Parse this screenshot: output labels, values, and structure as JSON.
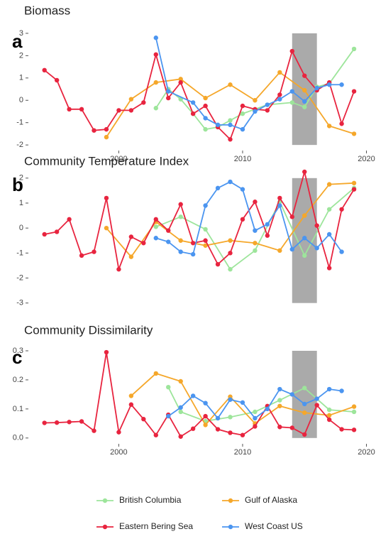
{
  "chart_data": [
    {
      "type": "line",
      "title": "Biomass",
      "label": "a",
      "xlim": [
        1992.7,
        2020.2
      ],
      "xticks": [
        2000,
        2010,
        2020
      ],
      "ylim": [
        -2.25,
        3.22
      ],
      "yticks": [
        -2,
        -1,
        0,
        1,
        2,
        3
      ],
      "shade": [
        2014,
        2016
      ],
      "series": [
        {
          "name": "British Columbia",
          "color": "#9de59b",
          "x": [
            2003,
            2004,
            2005,
            2006,
            2007,
            2008,
            2009,
            2010,
            2012,
            2014,
            2015,
            2016,
            2017,
            2019
          ],
          "values": [
            -0.35,
            0.5,
            0.05,
            -0.6,
            -1.3,
            -1.2,
            -0.9,
            -0.6,
            -0.2,
            -0.1,
            -0.3,
            0.6,
            0.75,
            2.3
          ]
        },
        {
          "name": "Gulf of Alaska",
          "color": "#f5a72a",
          "x": [
            1999,
            2001,
            2003,
            2005,
            2007,
            2009,
            2011,
            2013,
            2015,
            2017,
            2019
          ],
          "values": [
            -1.65,
            0.05,
            0.8,
            0.95,
            0.1,
            0.7,
            0.0,
            1.25,
            0.45,
            -1.15,
            -1.5
          ]
        },
        {
          "name": "Eastern Bering Sea",
          "color": "#e8243f",
          "x": [
            1994,
            1995,
            1996,
            1997,
            1998,
            1999,
            2000,
            2001,
            2002,
            2003,
            2004,
            2005,
            2006,
            2007,
            2008,
            2009,
            2010,
            2011,
            2012,
            2013,
            2014,
            2015,
            2016,
            2017,
            2018,
            2019
          ],
          "values": [
            1.35,
            0.9,
            -0.4,
            -0.4,
            -1.35,
            -1.3,
            -0.45,
            -0.45,
            -0.1,
            2.05,
            0.1,
            0.8,
            -0.6,
            -0.25,
            -1.2,
            -1.75,
            -0.25,
            -0.4,
            -0.45,
            0.25,
            2.2,
            1.1,
            0.45,
            0.8,
            -1.05,
            0.4
          ]
        },
        {
          "name": "West Coast US",
          "color": "#4b95f0",
          "x": [
            2003,
            2004,
            2006,
            2007,
            2008,
            2009,
            2010,
            2011,
            2012,
            2013,
            2014,
            2015,
            2016,
            2017,
            2018
          ],
          "values": [
            2.8,
            0.4,
            -0.1,
            -0.8,
            -1.1,
            -1.1,
            -1.3,
            -0.5,
            -0.2,
            0.05,
            0.4,
            -0.05,
            0.55,
            0.7,
            0.7
          ]
        }
      ]
    },
    {
      "type": "line",
      "title": "Community Temperature Index",
      "label": "b",
      "xlim": [
        1992.7,
        2020.2
      ],
      "ylim": [
        -3.15,
        2.25
      ],
      "yticks": [
        -3,
        -2,
        -1,
        0,
        1,
        2
      ],
      "shade": [
        2014,
        2016
      ],
      "series": [
        {
          "color": "#9de59b",
          "x": [
            2003,
            2005,
            2007,
            2009,
            2011,
            2013,
            2015,
            2017,
            2019
          ],
          "values": [
            0.05,
            0.45,
            -0.05,
            -1.65,
            -0.9,
            1.05,
            -1.1,
            0.75,
            1.6
          ]
        },
        {
          "color": "#f5a72a",
          "x": [
            1999,
            2001,
            2003,
            2005,
            2007,
            2009,
            2011,
            2013,
            2015,
            2017,
            2019
          ],
          "values": [
            0.0,
            -1.15,
            0.25,
            -0.5,
            -0.7,
            -0.5,
            -0.6,
            -0.9,
            0.5,
            1.75,
            1.8
          ]
        },
        {
          "color": "#e8243f",
          "x": [
            1994,
            1995,
            1996,
            1997,
            1998,
            1999,
            2000,
            2001,
            2002,
            2003,
            2004,
            2005,
            2006,
            2007,
            2008,
            2009,
            2010,
            2011,
            2012,
            2013,
            2014,
            2015,
            2016,
            2017,
            2018,
            2019
          ],
          "values": [
            -0.25,
            -0.15,
            0.35,
            -1.1,
            -0.95,
            1.2,
            -1.65,
            -0.35,
            -0.6,
            0.35,
            -0.1,
            0.95,
            -0.6,
            -0.5,
            -1.45,
            -1.0,
            0.35,
            1.05,
            -0.3,
            1.2,
            0.45,
            2.25,
            0.1,
            -1.6,
            0.75,
            1.55
          ]
        },
        {
          "color": "#4b95f0",
          "x": [
            2003,
            2004,
            2005,
            2006,
            2007,
            2008,
            2009,
            2010,
            2011,
            2012,
            2013,
            2014,
            2015,
            2016,
            2017,
            2018
          ],
          "values": [
            -0.4,
            -0.55,
            -0.95,
            -1.05,
            0.9,
            1.6,
            1.85,
            1.55,
            -0.1,
            0.15,
            0.9,
            -0.85,
            -0.4,
            -0.8,
            -0.25,
            -0.95
          ]
        }
      ]
    },
    {
      "type": "line",
      "title": "Community Dissimilarity",
      "label": "c",
      "xlim": [
        1992.7,
        2020.2
      ],
      "xticks": [
        2000,
        2010,
        2020
      ],
      "ylim": [
        -0.02,
        0.322
      ],
      "yticks": [
        {
          "value": 0,
          "label": "0.0"
        },
        0.1,
        0.2,
        0.3
      ],
      "shade": [
        2014,
        2016
      ],
      "series": [
        {
          "color": "#9de59b",
          "x": [
            2004,
            2005,
            2007,
            2009,
            2011,
            2013,
            2015,
            2017,
            2019
          ],
          "values": [
            0.175,
            0.09,
            0.058,
            0.072,
            0.09,
            0.13,
            0.172,
            0.097,
            0.09
          ]
        },
        {
          "color": "#f5a72a",
          "x": [
            2001,
            2003,
            2005,
            2007,
            2009,
            2011,
            2013,
            2015,
            2017,
            2019
          ],
          "values": [
            0.145,
            0.222,
            0.195,
            0.045,
            0.142,
            0.05,
            0.11,
            0.087,
            0.078,
            0.108
          ]
        },
        {
          "color": "#e8243f",
          "x": [
            1994,
            1995,
            1996,
            1997,
            1998,
            1999,
            2000,
            2001,
            2002,
            2003,
            2004,
            2005,
            2006,
            2007,
            2008,
            2009,
            2010,
            2011,
            2012,
            2013,
            2014,
            2015,
            2016,
            2017,
            2018,
            2019
          ],
          "values": [
            0.052,
            0.053,
            0.055,
            0.057,
            0.025,
            0.295,
            0.02,
            0.115,
            0.065,
            0.01,
            0.08,
            0.005,
            0.032,
            0.075,
            0.03,
            0.018,
            0.01,
            0.04,
            0.11,
            0.038,
            0.035,
            0.012,
            0.113,
            0.063,
            0.03,
            0.028
          ]
        },
        {
          "color": "#4b95f0",
          "x": [
            2004,
            2005,
            2006,
            2007,
            2008,
            2009,
            2010,
            2011,
            2012,
            2013,
            2014,
            2015,
            2016,
            2017,
            2018
          ],
          "values": [
            0.075,
            0.105,
            0.145,
            0.12,
            0.068,
            0.132,
            0.122,
            0.068,
            0.1,
            0.168,
            0.15,
            0.117,
            0.135,
            0.168,
            0.162
          ]
        }
      ]
    }
  ]
}
